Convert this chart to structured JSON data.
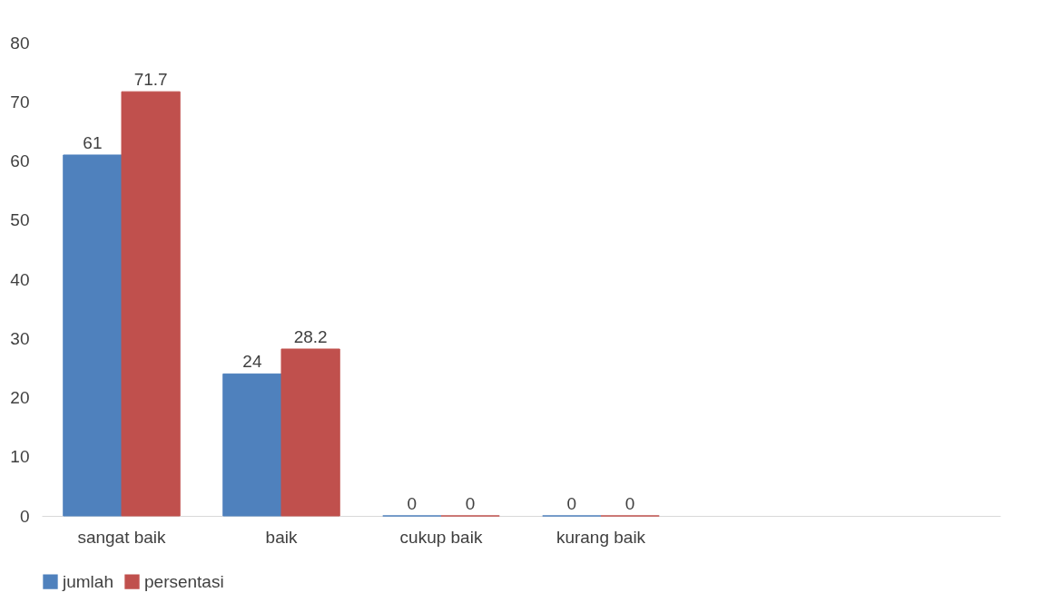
{
  "chart_data": {
    "type": "bar",
    "categories": [
      "sangat baik",
      "baik",
      "cukup baik",
      "kurang baik",
      null,
      null
    ],
    "series": [
      {
        "name": "jumlah",
        "color": "#4f81bd",
        "values": [
          61,
          24,
          0,
          0,
          null,
          null
        ]
      },
      {
        "name": "persentasi",
        "color": "#c0504d",
        "values": [
          71.7,
          28.2,
          0,
          0,
          null,
          null
        ]
      }
    ],
    "ylim": [
      0,
      80
    ],
    "yticks": [
      0,
      10,
      20,
      30,
      40,
      50,
      60,
      70,
      80
    ],
    "grid": false,
    "legend": "bottom",
    "data_labels": true
  }
}
